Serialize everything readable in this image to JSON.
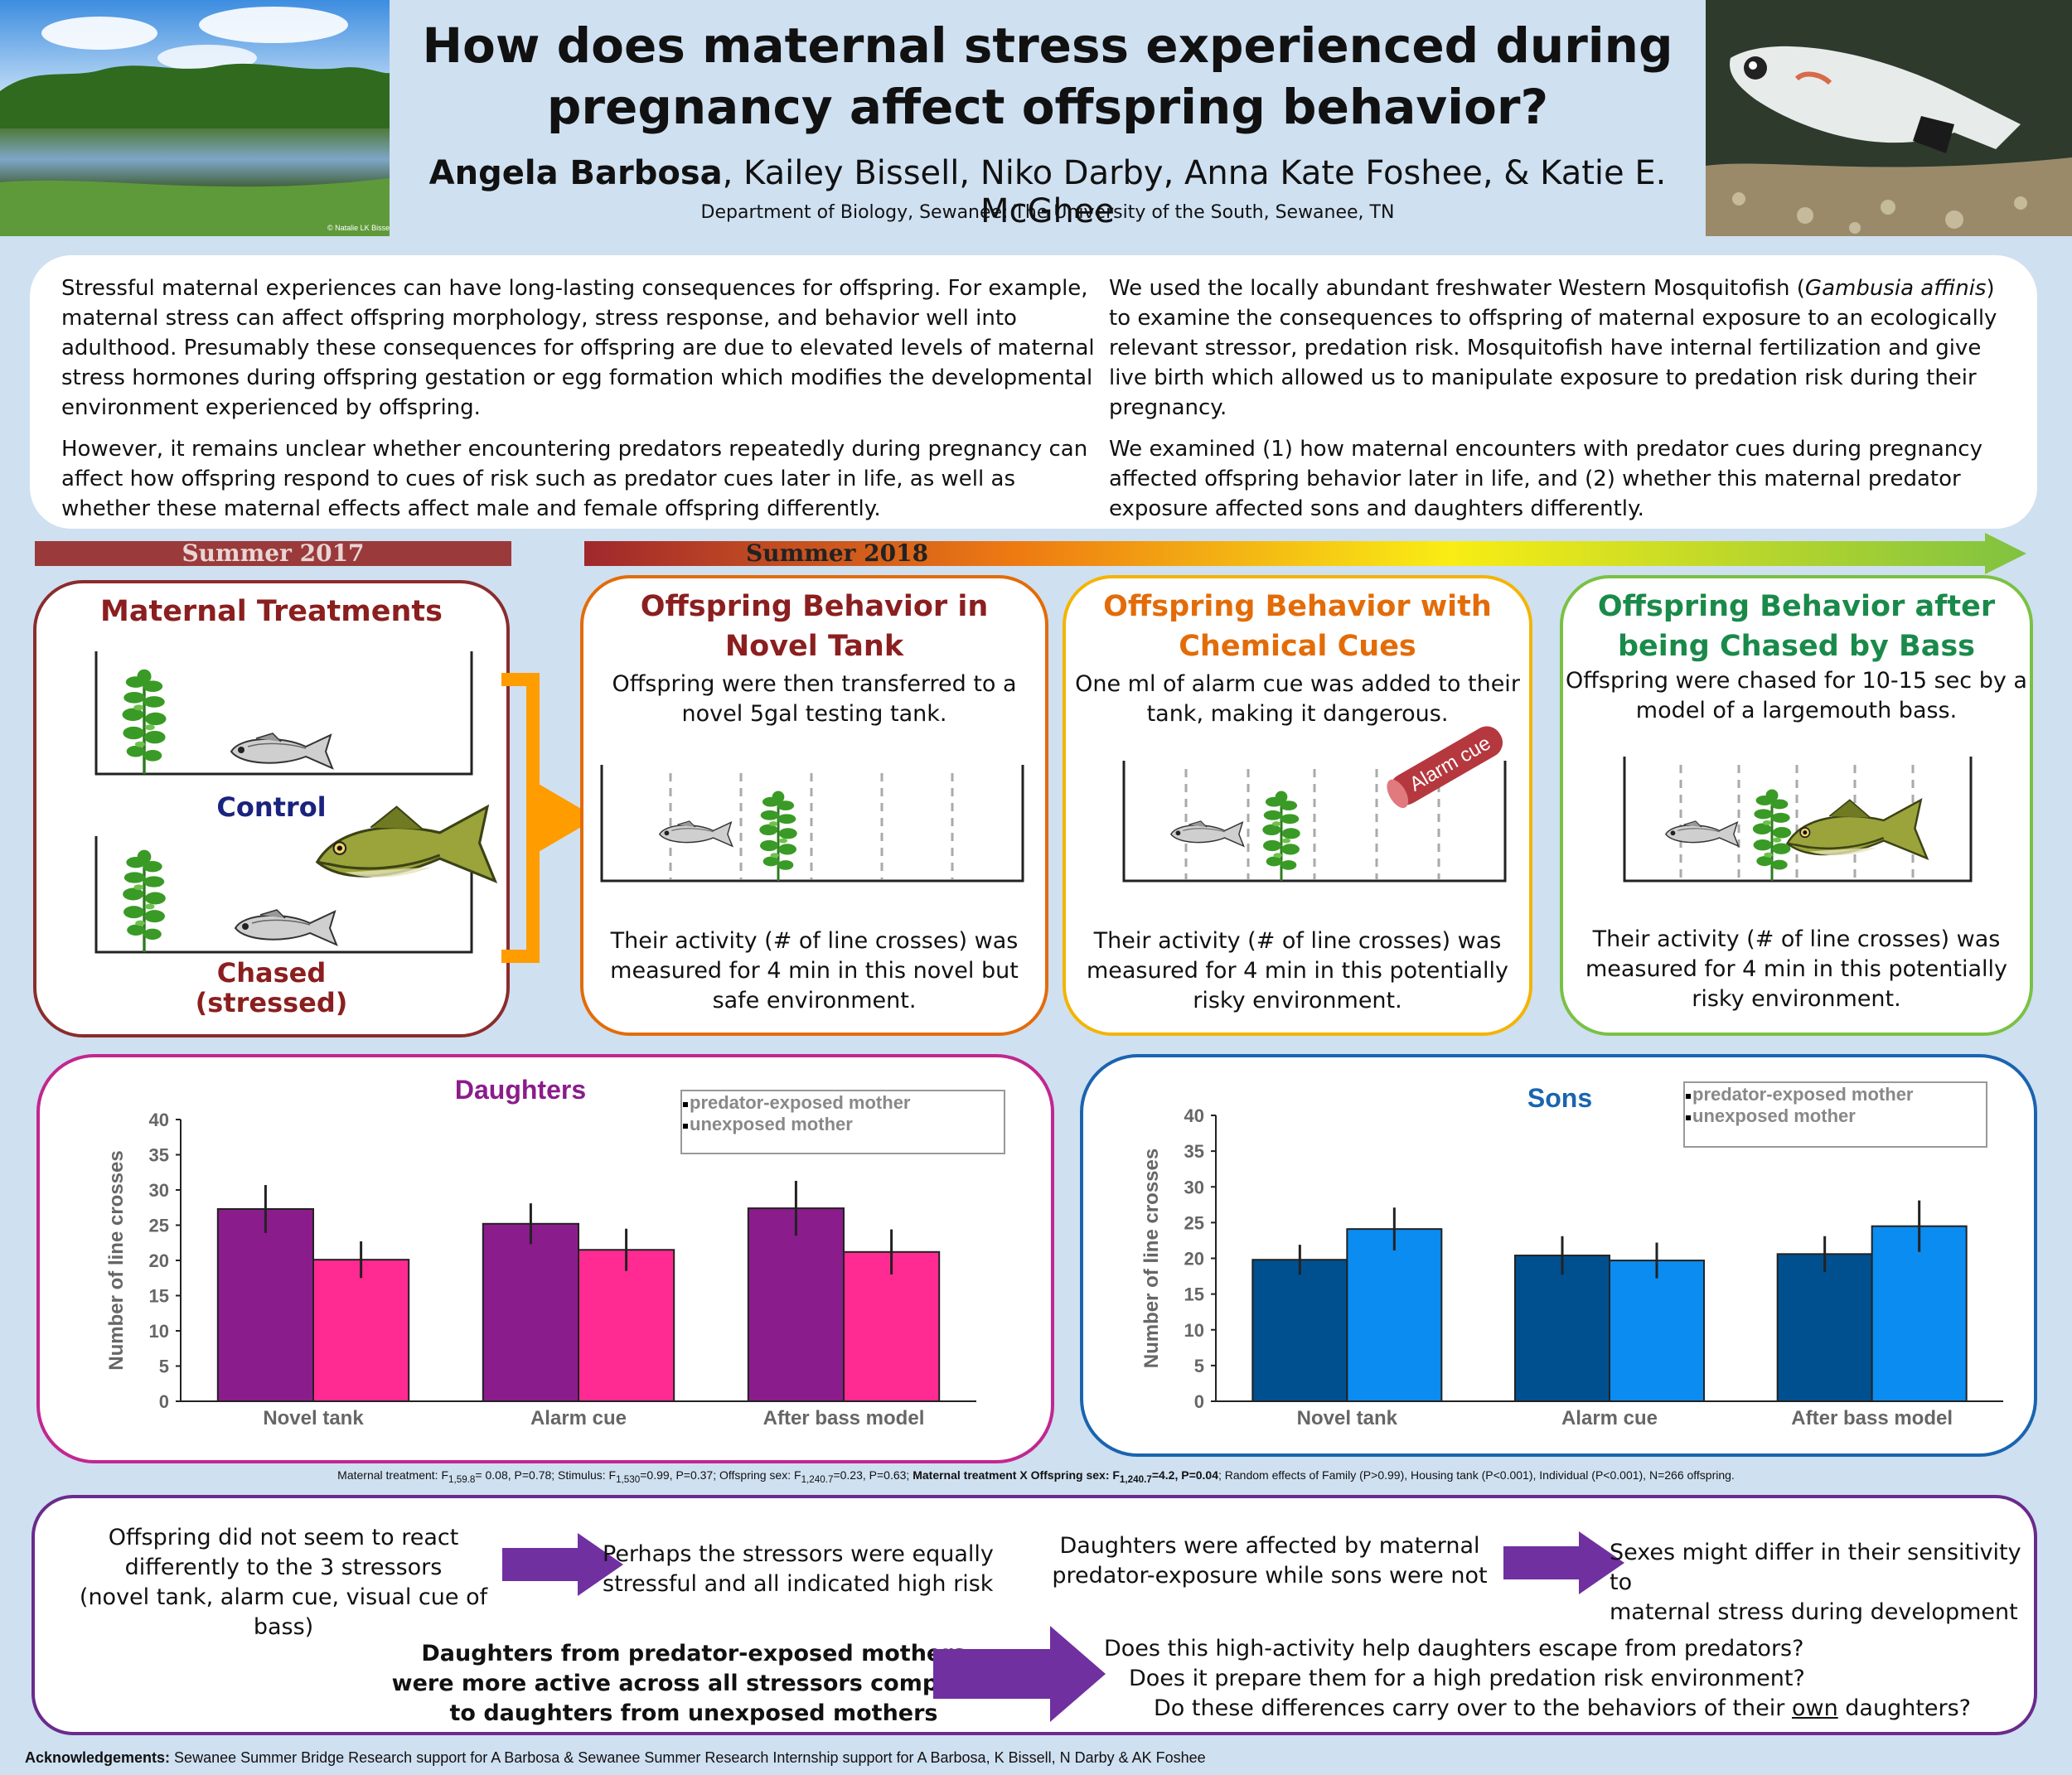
{
  "header": {
    "title_line1": "How does maternal stress experienced during",
    "title_line2": "pregnancy affect offspring behavior?",
    "author_lead": "Angela Barbosa",
    "authors_rest": ", Kailey Bissell, Niko Darby, Anna Kate Foshee, & Katie E. McGhee",
    "department": "Department of Biology, Sewanee: The University of the South, Sewanee, TN",
    "photo_credit": "© Natalie LK Bissell"
  },
  "intro": {
    "left_p1": "Stressful maternal experiences can have long-lasting consequences for offspring. For example, maternal stress can affect offspring morphology, stress response, and behavior well into adulthood. Presumably these consequences for offspring are due to elevated levels of maternal stress hormones during offspring gestation or egg formation which modifies the developmental environment experienced by offspring.",
    "left_p2": "However, it remains unclear whether encountering predators repeatedly during pregnancy can affect how offspring respond to cues of risk such as predator cues later in life, as well as whether these maternal effects affect male and female offspring differently.",
    "right_p1_a": "We used the locally abundant freshwater Western Mosquitofish (",
    "right_p1_species": "Gambusia affinis",
    "right_p1_b": ") to examine the consequences to offspring of maternal exposure to an ecologically relevant stressor, predation risk. Mosquitofish have internal fertilization and give live birth which allowed us to manipulate exposure to predation risk during their pregnancy.",
    "right_p2": "We examined (1) how maternal encounters with predator cues during pregnancy affected offspring behavior later in life, and (2) whether this maternal predator exposure affected sons and daughters differently."
  },
  "timeline": {
    "summer2017": "Summer 2017",
    "summer2018": "Summer 2018"
  },
  "panels": {
    "maternal": {
      "title": "Maternal Treatments",
      "control": "Control",
      "chased_1": "Chased",
      "chased_2": "(stressed)",
      "color": "#8b1f1f"
    },
    "novel": {
      "title_1": "Offspring Behavior in",
      "title_2": "Novel Tank",
      "desc_1": "Offspring were then transferred to a",
      "desc_2": "novel 5gal testing tank.",
      "result_1": "Their activity (# of line crosses) was",
      "result_2": "measured for 4 min in this novel but",
      "result_3": "safe environment.",
      "color": "#e36c09"
    },
    "chemical": {
      "title_1": "Offspring Behavior with",
      "title_2": "Chemical Cues",
      "desc_1": "One ml of alarm cue was added to their",
      "desc_2": "tank, making it dangerous.",
      "alarm_label": "Alarm cue",
      "result_1": "Their activity (# of line crosses) was",
      "result_2": "measured for 4 min in this potentially",
      "result_3": "risky environment.",
      "color": "#f4b400"
    },
    "bass": {
      "title_1": "Offspring Behavior after",
      "title_2": "being Chased by Bass",
      "desc_1": "Offspring were chased for 10-15 sec by a",
      "desc_2": "model of a largemouth bass.",
      "result_1": "Their activity (# of line crosses) was",
      "result_2": "measured for 4 min in this potentially",
      "result_3": "risky environment.",
      "color": "#7ac143"
    }
  },
  "chart_data": [
    {
      "type": "bar",
      "title": "Daughters",
      "ylabel": "Number of line crosses",
      "categories": [
        "Novel tank",
        "Alarm cue",
        "After bass model"
      ],
      "ylim": [
        0,
        40
      ],
      "yticks": [
        "0",
        "5",
        "10",
        "15",
        "20",
        "25",
        "30",
        "35",
        "40"
      ],
      "legend": [
        "predator-exposed mother",
        "unexposed mother"
      ],
      "legend_placement": "top-right",
      "series": [
        {
          "name": "predator-exposed mother",
          "values": [
            27.3,
            25.2,
            27.4
          ],
          "errors": [
            3.4,
            2.9,
            3.9
          ],
          "color": "#8b1c8c"
        },
        {
          "name": "unexposed mother",
          "values": [
            20.1,
            21.5,
            21.2
          ],
          "errors": [
            2.6,
            3.0,
            3.2
          ],
          "color": "#ff2a92"
        }
      ]
    },
    {
      "type": "bar",
      "title": "Sons",
      "ylabel": "Number of line crosses",
      "categories": [
        "Novel tank",
        "Alarm cue",
        "After bass model"
      ],
      "ylim": [
        0,
        40
      ],
      "yticks": [
        "0",
        "5",
        "10",
        "15",
        "20",
        "25",
        "30",
        "35",
        "40"
      ],
      "legend": [
        "predator-exposed mother",
        "unexposed mother"
      ],
      "legend_placement": "top-right",
      "series": [
        {
          "name": "predator-exposed mother",
          "values": [
            19.8,
            20.4,
            20.6
          ],
          "errors": [
            2.1,
            2.7,
            2.5
          ],
          "color": "#00508f"
        },
        {
          "name": "unexposed mother",
          "values": [
            24.1,
            19.7,
            24.5
          ],
          "errors": [
            3.0,
            2.5,
            3.6
          ],
          "color": "#0a8cf0"
        }
      ]
    }
  ],
  "stats": {
    "part1": "Maternal treatment: F",
    "sub1": "1,59.8",
    "part2": "= 0.08, P=0.78; Stimulus: F",
    "sub2": "1,530",
    "part3": "=0.99, P=0.37; Offspring sex: F",
    "sub3": "1,240.7",
    "part4": "=0.23, P=0.63; ",
    "bold_a": "Maternal treatment X Offspring sex: F",
    "sub4": "1,240.7",
    "bold_b": "=4.2, P=0.04",
    "part5": "; Random effects of Family (P>0.99), Housing tank (P<0.001), Individual (P<0.001), N=266 offspring."
  },
  "conclusions": {
    "c1_1": "Offspring did not seem to react",
    "c1_2": "differently to the 3 stressors",
    "c1_3": "(novel tank, alarm cue, visual cue of bass)",
    "c2_1": "Perhaps the stressors were equally",
    "c2_2": "stressful and all indicated high risk",
    "c3_1": "Daughters were affected by maternal",
    "c3_2": "predator-exposure while sons were not",
    "c4_1": "Sexes might differ in their sensitivity to",
    "c4_2": "maternal stress during development",
    "c5_1": "Daughters from predator-exposed mothers",
    "c5_2": "were more active across all stressors compared",
    "c5_3": "to daughters from unexposed mothers",
    "q1": "Does this high-activity help daughters escape from predators?",
    "q2": "Does it prepare them for a high predation risk environment?",
    "q3_a": "Do these differences carry over to the behaviors of their ",
    "q3_u": "own",
    "q3_b": " daughters?",
    "arrow_color": "#7030a0"
  },
  "acknowledgements": {
    "label": "Acknowledgements:",
    "text": " Sewanee Summer Bridge Research support for A Barbosa & Sewanee Summer Research Internship support for A Barbosa, K Bissell, N Darby & AK Foshee"
  }
}
